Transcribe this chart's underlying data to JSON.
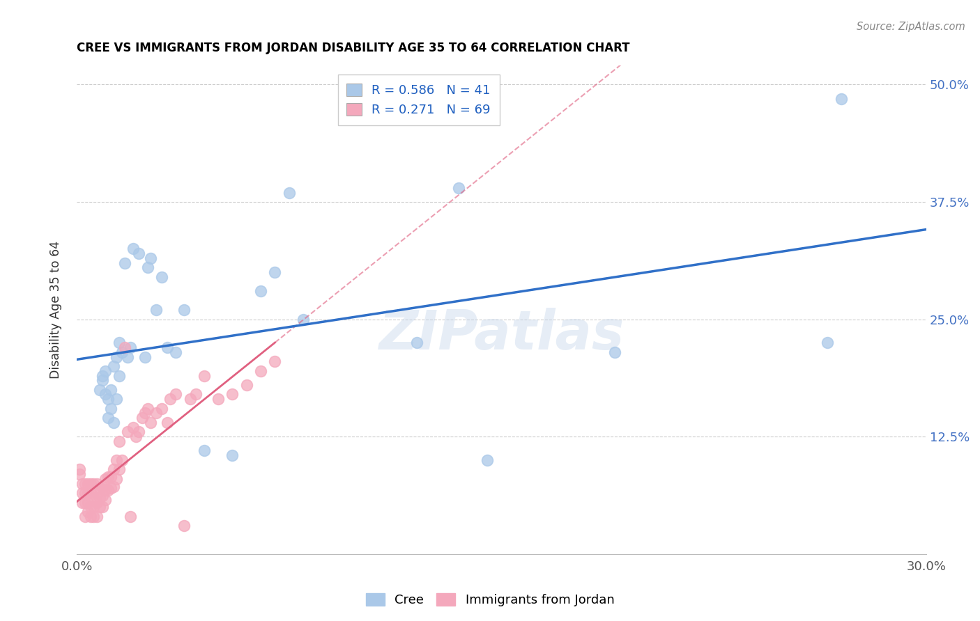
{
  "title": "CREE VS IMMIGRANTS FROM JORDAN DISABILITY AGE 35 TO 64 CORRELATION CHART",
  "source": "Source: ZipAtlas.com",
  "ylabel": "Disability Age 35 to 64",
  "xlim": [
    0.0,
    0.3
  ],
  "ylim": [
    0.0,
    0.52
  ],
  "cree_color": "#aac8e8",
  "jordan_color": "#f4a8bc",
  "cree_line_color": "#3070c8",
  "jordan_line_color": "#e06080",
  "watermark": "ZIPatlas",
  "legend_r_cree": "R = 0.586",
  "legend_n_cree": "N = 41",
  "legend_r_jordan": "R = 0.271",
  "legend_n_jordan": "N = 69",
  "cree_x": [
    0.008,
    0.009,
    0.009,
    0.01,
    0.01,
    0.011,
    0.011,
    0.012,
    0.012,
    0.013,
    0.013,
    0.014,
    0.014,
    0.015,
    0.015,
    0.016,
    0.017,
    0.018,
    0.019,
    0.02,
    0.022,
    0.024,
    0.025,
    0.026,
    0.028,
    0.03,
    0.032,
    0.035,
    0.038,
    0.045,
    0.055,
    0.065,
    0.07,
    0.075,
    0.08,
    0.12,
    0.135,
    0.145,
    0.19,
    0.27,
    0.265
  ],
  "cree_y": [
    0.175,
    0.185,
    0.19,
    0.17,
    0.195,
    0.145,
    0.165,
    0.155,
    0.175,
    0.14,
    0.2,
    0.165,
    0.21,
    0.19,
    0.225,
    0.215,
    0.31,
    0.21,
    0.22,
    0.325,
    0.32,
    0.21,
    0.305,
    0.315,
    0.26,
    0.295,
    0.22,
    0.215,
    0.26,
    0.11,
    0.105,
    0.28,
    0.3,
    0.385,
    0.25,
    0.225,
    0.39,
    0.1,
    0.215,
    0.485,
    0.225
  ],
  "jordan_x": [
    0.001,
    0.001,
    0.002,
    0.002,
    0.002,
    0.003,
    0.003,
    0.003,
    0.003,
    0.004,
    0.004,
    0.004,
    0.004,
    0.005,
    0.005,
    0.005,
    0.005,
    0.006,
    0.006,
    0.006,
    0.006,
    0.007,
    0.007,
    0.007,
    0.007,
    0.008,
    0.008,
    0.008,
    0.009,
    0.009,
    0.009,
    0.01,
    0.01,
    0.01,
    0.011,
    0.011,
    0.012,
    0.012,
    0.013,
    0.013,
    0.014,
    0.014,
    0.015,
    0.015,
    0.016,
    0.017,
    0.018,
    0.019,
    0.02,
    0.021,
    0.022,
    0.023,
    0.024,
    0.025,
    0.026,
    0.028,
    0.03,
    0.032,
    0.033,
    0.035,
    0.038,
    0.04,
    0.042,
    0.045,
    0.05,
    0.055,
    0.06,
    0.065,
    0.07
  ],
  "jordan_y": [
    0.085,
    0.09,
    0.055,
    0.065,
    0.075,
    0.04,
    0.055,
    0.065,
    0.075,
    0.045,
    0.055,
    0.065,
    0.075,
    0.04,
    0.05,
    0.065,
    0.075,
    0.04,
    0.05,
    0.06,
    0.075,
    0.04,
    0.055,
    0.065,
    0.075,
    0.05,
    0.06,
    0.07,
    0.05,
    0.062,
    0.072,
    0.058,
    0.068,
    0.08,
    0.068,
    0.082,
    0.07,
    0.082,
    0.072,
    0.09,
    0.08,
    0.1,
    0.09,
    0.12,
    0.1,
    0.22,
    0.13,
    0.04,
    0.135,
    0.125,
    0.13,
    0.145,
    0.15,
    0.155,
    0.14,
    0.15,
    0.155,
    0.14,
    0.165,
    0.17,
    0.03,
    0.165,
    0.17,
    0.19,
    0.165,
    0.17,
    0.18,
    0.195,
    0.205
  ]
}
